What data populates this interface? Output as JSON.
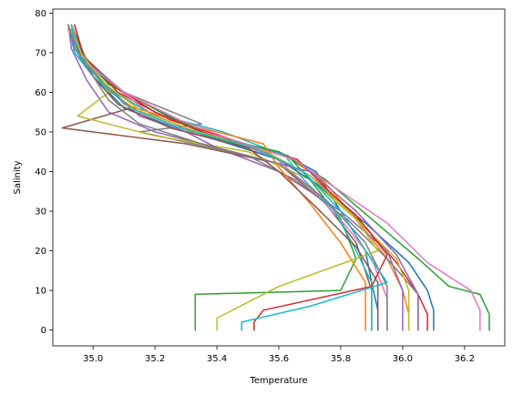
{
  "chart_data": {
    "type": "line",
    "title": "",
    "xlabel": "Temperature",
    "ylabel": "Salinity",
    "xlim": [
      34.87,
      36.33
    ],
    "ylim": [
      -4,
      81
    ],
    "xticks": [
      "35.0",
      "35.2",
      "35.4",
      "35.6",
      "35.8",
      "36.0",
      "36.2"
    ],
    "yticks": [
      "0",
      "10",
      "20",
      "30",
      "40",
      "50",
      "60",
      "70",
      "80"
    ],
    "grid": false,
    "legend": "none",
    "colors": [
      "#1f77b4",
      "#ff7f0e",
      "#2ca02c",
      "#d62728",
      "#9467bd",
      "#8c564b",
      "#e377c2",
      "#7f7f7f",
      "#bcbd22",
      "#17becf"
    ],
    "series": [
      {
        "x": [
          34.93,
          34.95,
          35.0,
          35.1,
          35.3,
          35.6,
          35.72,
          35.8,
          35.88,
          35.9,
          35.92,
          35.92
        ],
        "y": [
          77,
          72,
          64,
          56,
          50,
          45,
          40,
          30,
          20,
          12,
          5,
          0
        ]
      },
      {
        "x": [
          34.92,
          34.94,
          35.02,
          35.15,
          35.35,
          35.62,
          35.74,
          35.85,
          35.95,
          36.0,
          36.02,
          36.02
        ],
        "y": [
          77,
          70,
          62,
          55,
          49,
          44,
          38,
          28,
          18,
          10,
          4,
          0
        ]
      },
      {
        "x": [
          34.93,
          34.96,
          35.05,
          35.2,
          35.4,
          35.63,
          35.7,
          35.8,
          35.85,
          35.8,
          35.33,
          35.33
        ],
        "y": [
          76,
          68,
          61,
          54,
          48,
          44,
          38,
          28,
          18,
          10,
          9,
          0
        ]
      },
      {
        "x": [
          34.94,
          34.97,
          35.08,
          35.25,
          35.45,
          35.66,
          35.75,
          35.88,
          35.98,
          36.05,
          36.08,
          36.08
        ],
        "y": [
          77,
          69,
          60,
          53,
          48,
          43,
          36,
          26,
          17,
          9,
          4,
          0
        ]
      },
      {
        "x": [
          34.92,
          34.93,
          34.98,
          35.05,
          35.2,
          35.4,
          35.6,
          35.8,
          35.95,
          36.0,
          36.0
        ],
        "y": [
          77,
          71,
          63,
          55,
          50,
          46,
          40,
          30,
          20,
          10,
          0
        ]
      },
      {
        "x": [
          34.93,
          34.95,
          35.04,
          35.12,
          34.9,
          35.3,
          35.6,
          35.75,
          35.85,
          35.9,
          35.9
        ],
        "y": [
          77,
          70,
          62,
          56,
          51,
          47,
          42,
          32,
          22,
          10,
          0
        ]
      },
      {
        "x": [
          34.92,
          34.96,
          35.06,
          35.18,
          35.35,
          35.58,
          35.7,
          35.82,
          35.9,
          35.95,
          35.95
        ],
        "y": [
          76,
          70,
          62,
          55,
          49,
          44,
          36,
          26,
          18,
          8,
          0
        ]
      },
      {
        "x": [
          34.93,
          34.98,
          35.1,
          35.35,
          35.15,
          35.5,
          35.65,
          35.82,
          35.95,
          36.05,
          36.05
        ],
        "y": [
          77,
          68,
          60,
          52,
          50,
          44,
          38,
          28,
          18,
          9,
          0
        ]
      },
      {
        "x": [
          34.93,
          34.95,
          35.05,
          34.95,
          35.2,
          35.5,
          35.7,
          35.85,
          35.98,
          36.02,
          36.02
        ],
        "y": [
          77,
          70,
          60,
          54,
          49,
          45,
          38,
          28,
          18,
          10,
          0
        ]
      },
      {
        "x": [
          34.92,
          34.94,
          35.02,
          35.18,
          35.42,
          35.62,
          35.68,
          35.78,
          35.85,
          35.9,
          35.9
        ],
        "y": [
          77,
          70,
          62,
          55,
          50,
          44,
          38,
          30,
          20,
          12,
          0
        ]
      },
      {
        "x": [
          34.93,
          34.97,
          35.08,
          35.24,
          35.4,
          35.6,
          35.72,
          35.88,
          36.02,
          36.08,
          36.1,
          36.1
        ],
        "y": [
          77,
          69,
          61,
          54,
          48,
          43,
          37,
          27,
          17,
          10,
          5,
          0
        ]
      },
      {
        "x": [
          34.92,
          34.95,
          35.03,
          35.1,
          35.3,
          35.55,
          35.6,
          35.7,
          35.8,
          35.88,
          35.88
        ],
        "y": [
          76,
          71,
          63,
          57,
          52,
          47,
          41,
          32,
          22,
          12,
          0
        ]
      },
      {
        "x": [
          34.93,
          34.96,
          35.05,
          35.22,
          35.38,
          35.6,
          35.75,
          35.9,
          36.05,
          36.15,
          36.25,
          36.28,
          36.28
        ],
        "y": [
          77,
          70,
          62,
          55,
          49,
          45,
          38,
          28,
          18,
          11,
          9,
          4,
          0
        ]
      },
      {
        "x": [
          34.94,
          34.97,
          35.06,
          35.2,
          35.35,
          35.55,
          35.7,
          35.85,
          35.95,
          35.9,
          35.55,
          35.52,
          35.52
        ],
        "y": [
          77,
          69,
          62,
          55,
          50,
          45,
          39,
          29,
          19,
          11,
          5,
          2,
          0
        ]
      },
      {
        "x": [
          34.92,
          34.95,
          35.05,
          35.15,
          35.3,
          35.4,
          35.7,
          35.85,
          35.98,
          36.05,
          36.05
        ],
        "y": [
          77,
          70,
          61,
          54,
          50,
          46,
          40,
          30,
          19,
          9,
          0
        ]
      },
      {
        "x": [
          34.93,
          34.95,
          35.0,
          35.08,
          35.25,
          35.5,
          35.6,
          35.72,
          35.85,
          35.92,
          35.92
        ],
        "y": [
          77,
          71,
          64,
          57,
          51,
          46,
          40,
          31,
          21,
          12,
          0
        ]
      },
      {
        "x": [
          34.93,
          34.97,
          35.1,
          35.28,
          35.45,
          35.65,
          35.78,
          35.95,
          36.08,
          36.22,
          36.25,
          36.25
        ],
        "y": [
          76,
          68,
          60,
          53,
          48,
          43,
          36,
          27,
          17,
          10,
          5,
          0
        ]
      },
      {
        "x": [
          34.92,
          34.94,
          35.0,
          35.05,
          35.15,
          35.35,
          35.6,
          35.75,
          35.88,
          35.95,
          35.95
        ],
        "y": [
          77,
          71,
          64,
          58,
          52,
          47,
          42,
          33,
          22,
          11,
          0
        ]
      },
      {
        "x": [
          34.93,
          34.96,
          35.04,
          35.16,
          35.34,
          35.56,
          35.7,
          35.84,
          35.92,
          35.6,
          35.4,
          35.4
        ],
        "y": [
          77,
          70,
          62,
          55,
          50,
          45,
          39,
          29,
          20,
          11,
          3,
          0
        ]
      },
      {
        "x": [
          34.93,
          34.95,
          35.03,
          35.12,
          35.28,
          35.52,
          35.68,
          35.8,
          35.88,
          35.95,
          35.7,
          35.48,
          35.48
        ],
        "y": [
          77,
          70,
          62,
          56,
          51,
          46,
          40,
          30,
          20,
          12,
          6,
          2,
          0
        ]
      }
    ]
  }
}
